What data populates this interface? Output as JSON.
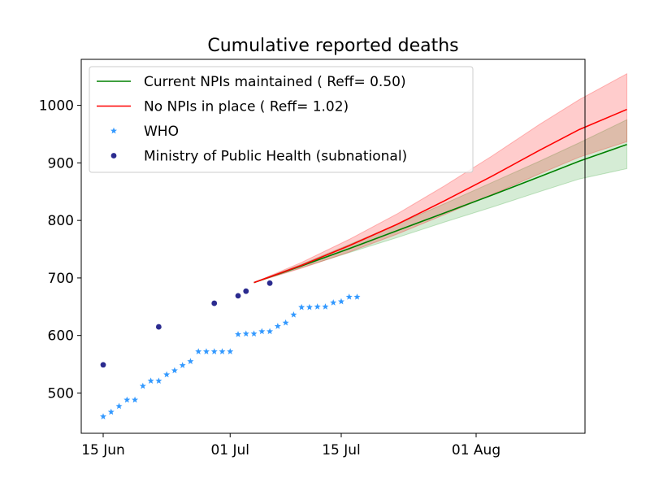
{
  "chart_data": {
    "type": "line",
    "title": "Cumulative reported deaths",
    "xlabel": "",
    "ylabel": "",
    "x_domain": [
      "2020-06-13",
      "2020-08-12"
    ],
    "ylim": [
      430,
      1080
    ],
    "x_ticks": [
      {
        "date": "2020-06-15",
        "label": "15 Jun"
      },
      {
        "date": "2020-07-01",
        "label": "01 Jul"
      },
      {
        "date": "2020-07-15",
        "label": "15 Jul"
      },
      {
        "date": "2020-08-01",
        "label": "01 Aug"
      }
    ],
    "y_ticks": [
      500,
      600,
      700,
      800,
      900,
      1000
    ],
    "legend_position": "upper-left",
    "series": [
      {
        "name": "Current NPIs maintained ( Reff= 0.50)",
        "kind": "line",
        "color": "#008000",
        "band_color": "#2ca02c",
        "points": [
          {
            "date": "2020-07-04",
            "y": 692,
            "lo": 692,
            "hi": 692
          },
          {
            "date": "2020-07-10",
            "y": 721,
            "lo": 718,
            "hi": 724
          },
          {
            "date": "2020-07-16",
            "y": 751,
            "lo": 744,
            "hi": 758
          },
          {
            "date": "2020-07-22",
            "y": 782,
            "lo": 770,
            "hi": 793
          },
          {
            "date": "2020-07-28",
            "y": 813,
            "lo": 797,
            "hi": 829
          },
          {
            "date": "2020-08-03",
            "y": 844,
            "lo": 823,
            "hi": 866
          },
          {
            "date": "2020-08-09",
            "y": 876,
            "lo": 850,
            "hi": 903
          },
          {
            "date": "2020-08-14",
            "y": 903,
            "lo": 872,
            "hi": 935
          },
          {
            "date": "2020-08-20",
            "y": 932,
            "lo": 890,
            "hi": 975
          }
        ]
      },
      {
        "name": "No NPIs in place ( Reff= 1.02)",
        "kind": "line",
        "color": "#ff0000",
        "band_color": "#ff0000",
        "points": [
          {
            "date": "2020-07-04",
            "y": 692,
            "lo": 692,
            "hi": 692
          },
          {
            "date": "2020-07-10",
            "y": 722,
            "lo": 717,
            "hi": 727
          },
          {
            "date": "2020-07-16",
            "y": 756,
            "lo": 745,
            "hi": 767
          },
          {
            "date": "2020-07-22",
            "y": 793,
            "lo": 776,
            "hi": 811
          },
          {
            "date": "2020-07-28",
            "y": 834,
            "lo": 810,
            "hi": 860
          },
          {
            "date": "2020-08-03",
            "y": 877,
            "lo": 845,
            "hi": 912
          },
          {
            "date": "2020-08-09",
            "y": 922,
            "lo": 881,
            "hi": 967
          },
          {
            "date": "2020-08-14",
            "y": 958,
            "lo": 910,
            "hi": 1010
          },
          {
            "date": "2020-08-20",
            "y": 993,
            "lo": 937,
            "hi": 1055
          }
        ]
      },
      {
        "name": "WHO",
        "kind": "scatter",
        "marker": "star",
        "color": "#3399ff",
        "points": [
          {
            "date": "2020-06-15",
            "y": 459
          },
          {
            "date": "2020-06-16",
            "y": 467
          },
          {
            "date": "2020-06-17",
            "y": 477
          },
          {
            "date": "2020-06-18",
            "y": 488
          },
          {
            "date": "2020-06-19",
            "y": 488
          },
          {
            "date": "2020-06-20",
            "y": 512
          },
          {
            "date": "2020-06-21",
            "y": 521
          },
          {
            "date": "2020-06-22",
            "y": 521
          },
          {
            "date": "2020-06-23",
            "y": 532
          },
          {
            "date": "2020-06-24",
            "y": 539
          },
          {
            "date": "2020-06-25",
            "y": 548
          },
          {
            "date": "2020-06-26",
            "y": 555
          },
          {
            "date": "2020-06-27",
            "y": 572
          },
          {
            "date": "2020-06-28",
            "y": 572
          },
          {
            "date": "2020-06-29",
            "y": 572
          },
          {
            "date": "2020-06-30",
            "y": 572
          },
          {
            "date": "2020-07-01",
            "y": 572
          },
          {
            "date": "2020-07-02",
            "y": 602
          },
          {
            "date": "2020-07-03",
            "y": 603
          },
          {
            "date": "2020-07-04",
            "y": 603
          },
          {
            "date": "2020-07-05",
            "y": 607
          },
          {
            "date": "2020-07-06",
            "y": 607
          },
          {
            "date": "2020-07-07",
            "y": 616
          },
          {
            "date": "2020-07-08",
            "y": 622
          },
          {
            "date": "2020-07-09",
            "y": 636
          },
          {
            "date": "2020-07-10",
            "y": 649
          },
          {
            "date": "2020-07-11",
            "y": 649
          },
          {
            "date": "2020-07-12",
            "y": 650
          },
          {
            "date": "2020-07-13",
            "y": 650
          },
          {
            "date": "2020-07-14",
            "y": 657
          },
          {
            "date": "2020-07-15",
            "y": 659
          },
          {
            "date": "2020-07-16",
            "y": 667
          },
          {
            "date": "2020-07-17",
            "y": 667
          }
        ]
      },
      {
        "name": "Ministry of Public Health (subnational)",
        "kind": "scatter",
        "marker": "circle",
        "color": "#2b2b8f",
        "points": [
          {
            "date": "2020-06-15",
            "y": 549
          },
          {
            "date": "2020-06-22",
            "y": 615
          },
          {
            "date": "2020-06-29",
            "y": 656
          },
          {
            "date": "2020-07-02",
            "y": 669
          },
          {
            "date": "2020-07-03",
            "y": 677
          },
          {
            "date": "2020-07-06",
            "y": 691
          }
        ]
      }
    ]
  }
}
